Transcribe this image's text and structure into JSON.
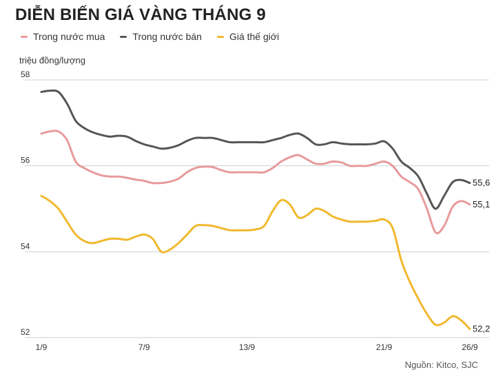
{
  "title": "DIỄN BIẾN GIÁ VÀNG THÁNG 9",
  "source": "Nguồn: Kitco, SJC",
  "chart_data": {
    "type": "line",
    "ylabel": "triệu đồng/lượng",
    "ylim": [
      52,
      58
    ],
    "yticks": [
      "52",
      "54",
      "56",
      "58"
    ],
    "ytick_values": [
      52,
      54,
      56,
      58
    ],
    "xticks": [
      "1/9",
      "7/9",
      "13/9",
      "21/9",
      "26/9"
    ],
    "xtick_days": [
      1,
      7,
      13,
      21,
      26
    ],
    "xlim_days": [
      1,
      26
    ],
    "x_days": [
      1,
      1.5,
      2,
      2.5,
      3,
      3.5,
      4,
      4.5,
      5,
      5.5,
      6,
      6.5,
      7,
      7.5,
      8,
      8.5,
      9,
      9.5,
      10,
      10.5,
      11,
      11.5,
      12,
      12.5,
      13,
      13.5,
      14,
      14.5,
      15,
      15.5,
      16,
      16.5,
      17,
      17.5,
      18,
      18.5,
      19,
      19.5,
      20,
      20.5,
      21,
      21.5,
      22,
      22.5,
      23,
      23.5,
      24,
      24.5,
      25,
      25.5,
      26
    ],
    "grid": true,
    "legend_position": "top-left",
    "series": [
      {
        "name": "Trong nước mua",
        "color": "#e89a9a",
        "end_label": "55,1",
        "values": [
          56.75,
          56.8,
          56.8,
          56.6,
          56.1,
          55.95,
          55.85,
          55.78,
          55.75,
          55.75,
          55.72,
          55.68,
          55.65,
          55.6,
          55.6,
          55.63,
          55.7,
          55.85,
          55.95,
          55.98,
          55.97,
          55.9,
          55.85,
          55.85,
          55.85,
          55.85,
          55.85,
          55.95,
          56.1,
          56.2,
          56.25,
          56.15,
          56.05,
          56.05,
          56.1,
          56.08,
          56.0,
          56.0,
          56.0,
          56.05,
          56.1,
          56.0,
          55.75,
          55.62,
          55.45,
          55.0,
          54.45,
          54.6,
          55.05,
          55.18,
          55.1
        ]
      },
      {
        "name": "Trong nước bán",
        "color": "#555555",
        "end_label": "55,6",
        "values": [
          57.72,
          57.75,
          57.72,
          57.45,
          57.05,
          56.88,
          56.78,
          56.72,
          56.68,
          56.7,
          56.68,
          56.58,
          56.5,
          56.45,
          56.4,
          56.42,
          56.48,
          56.58,
          56.65,
          56.65,
          56.65,
          56.6,
          56.55,
          56.55,
          56.55,
          56.55,
          56.55,
          56.6,
          56.65,
          56.72,
          56.75,
          56.65,
          56.5,
          56.5,
          56.55,
          56.52,
          56.5,
          56.5,
          56.5,
          56.52,
          56.57,
          56.4,
          56.1,
          55.95,
          55.75,
          55.35,
          55.0,
          55.3,
          55.62,
          55.67,
          55.6
        ]
      },
      {
        "name": "Giá thế giới",
        "color": "#f0b82d",
        "end_label": "52,2",
        "values": [
          55.3,
          55.18,
          55.0,
          54.7,
          54.4,
          54.25,
          54.2,
          54.25,
          54.3,
          54.3,
          54.28,
          54.35,
          54.4,
          54.3,
          54.0,
          54.05,
          54.2,
          54.4,
          54.6,
          54.62,
          54.6,
          54.55,
          54.5,
          54.5,
          54.5,
          54.52,
          54.6,
          54.95,
          55.2,
          55.1,
          54.8,
          54.85,
          55.0,
          54.95,
          54.82,
          54.75,
          54.7,
          54.7,
          54.7,
          54.72,
          54.75,
          54.55,
          53.8,
          53.3,
          52.9,
          52.55,
          52.3,
          52.35,
          52.5,
          52.4,
          52.2
        ]
      }
    ]
  }
}
